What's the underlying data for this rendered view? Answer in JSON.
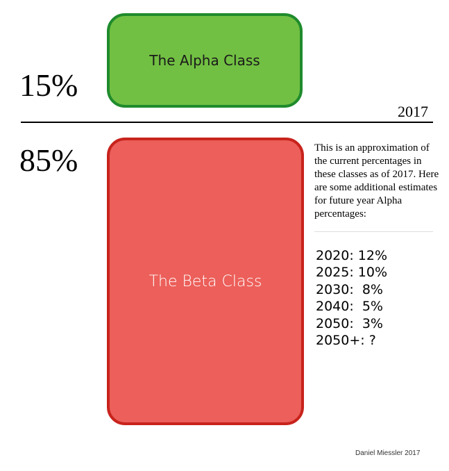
{
  "alpha": {
    "percentage": "15%",
    "label": "The Alpha Class",
    "fill_color": "#72c043",
    "border_color": "#1f8b2c"
  },
  "beta": {
    "percentage": "85%",
    "label": "The Beta Class",
    "fill_color": "#ec5f5a",
    "border_color": "#c8231c"
  },
  "year_label": "2017",
  "description": "This is an approximation of the current percentages in these classes as of 2017. Here are some additional estimates for future year Alpha percentages:",
  "estimates": [
    "2020: 12%",
    "2025: 10%",
    "2030:  8%",
    "2040:  5%",
    "2050:  3%",
    "2050+: ?"
  ],
  "credit": "Daniel Miessler 2017"
}
